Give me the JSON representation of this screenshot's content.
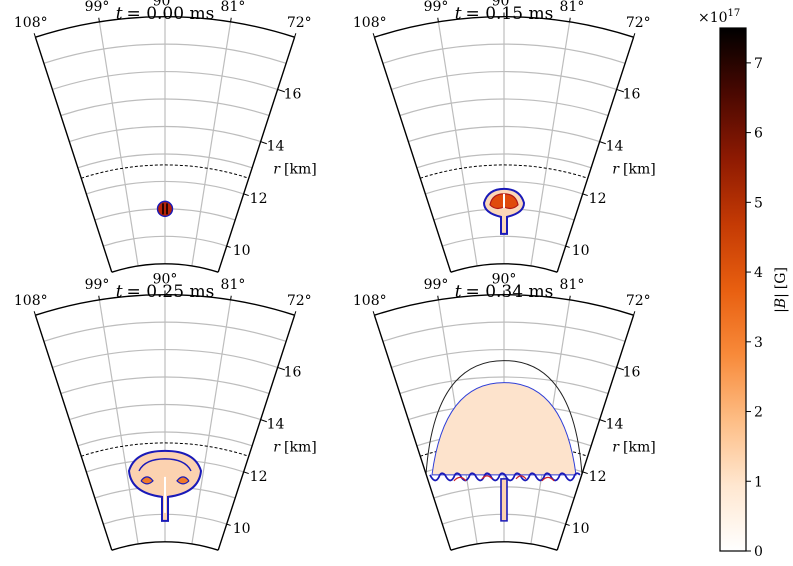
{
  "chart_data": {
    "type": "heatmap",
    "projection": "polar-wedge",
    "theta_range_deg": [
      72,
      108
    ],
    "r_range_km": [
      9,
      18
    ],
    "theta_ticks": [
      "108°",
      "99°",
      "90°",
      "81°",
      "72°"
    ],
    "r_ticks": [
      "10",
      "12",
      "14",
      "16"
    ],
    "r_label": "r [km]",
    "r_label_math": "r",
    "r_label_unit": "[km]",
    "dashed_radius_km": 12.6,
    "panels": [
      {
        "title": "t = 0.00 ms",
        "t_label": "t",
        "t_value": "= 0.00 ms",
        "stage": 0
      },
      {
        "title": "t = 0.15 ms",
        "t_label": "t",
        "t_value": "= 0.15 ms",
        "stage": 1
      },
      {
        "title": "t = 0.25 ms",
        "t_label": "t",
        "t_value": "= 0.25 ms",
        "stage": 2
      },
      {
        "title": "t = 0.34 ms",
        "t_label": "t",
        "t_value": "= 0.34 ms",
        "stage": 3
      }
    ],
    "colorbar": {
      "label": "|B| [G]",
      "label_math": "|B|",
      "label_unit": "[G]",
      "multiplier": "×10",
      "multiplier_exp": "17",
      "range": [
        0,
        7.5
      ],
      "ticks": [
        "0",
        "1",
        "2",
        "3",
        "4",
        "5",
        "6",
        "7"
      ],
      "colormap": [
        "#ffffff",
        "#ffe7d0",
        "#fdbd85",
        "#f88a3a",
        "#e85f10",
        "#c43a04",
        "#8e1a02",
        "#4a0801",
        "#000000"
      ]
    }
  }
}
